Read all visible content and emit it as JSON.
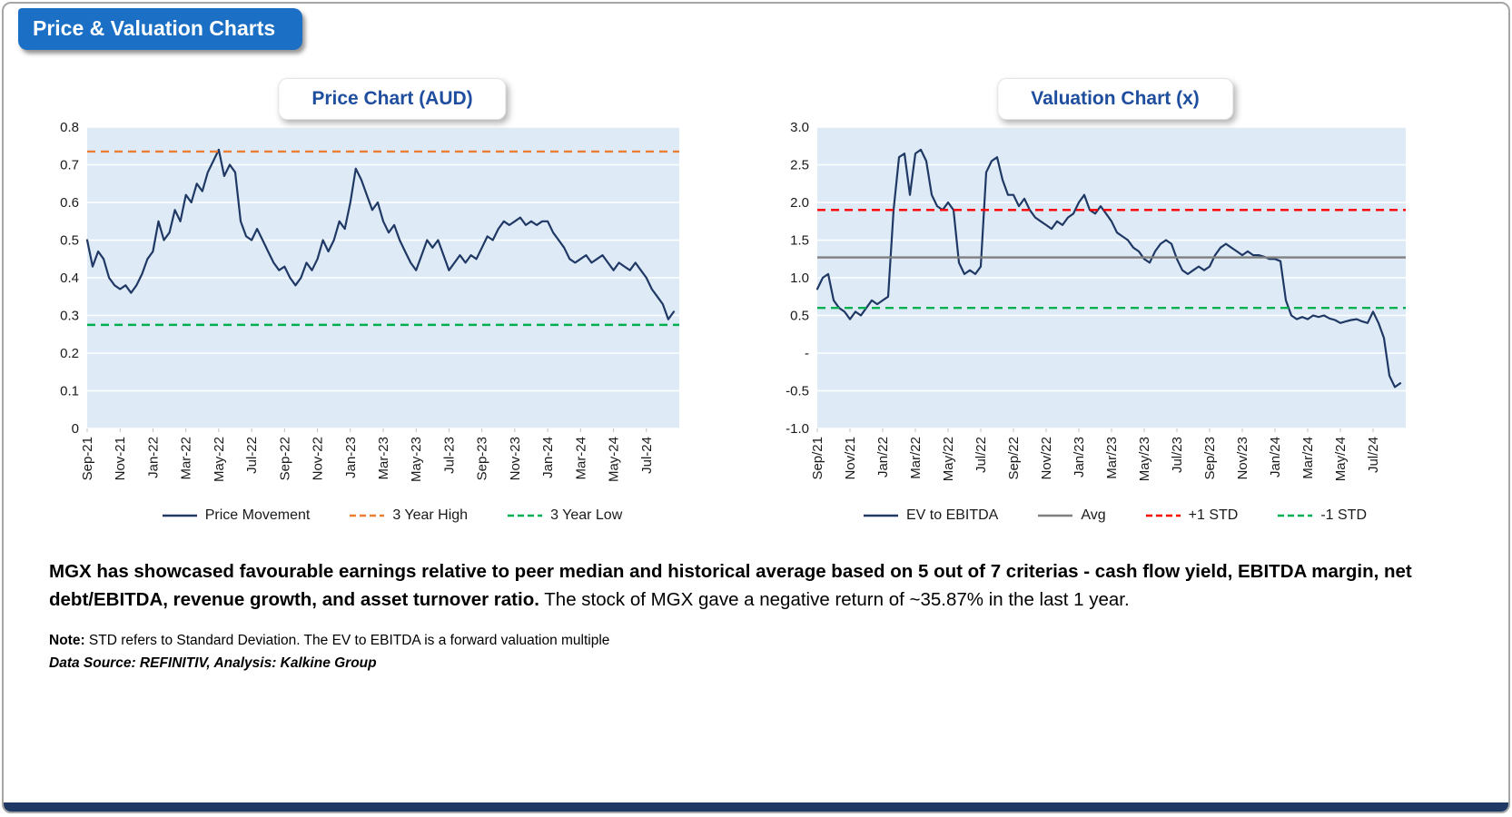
{
  "header": {
    "badge": "Price & Valuation Charts"
  },
  "commentary": {
    "bold": "MGX has showcased favourable earnings relative to peer median and historical average based on 5 out of 7 criterias - cash flow yield, EBITDA margin, net debt/EBITDA, revenue growth, and asset turnover ratio.",
    "regular": " The stock of MGX gave a negative return of ~35.87% in the last 1 year."
  },
  "footnotes": {
    "note_label": "Note:",
    "note_text": " STD refers to Standard Deviation. The EV to EBITDA is a forward valuation multiple",
    "data_source": "Data Source: REFINITIV, Analysis: Kalkine Group"
  },
  "colors": {
    "badge_bg": "#1B6FC4",
    "title_text": "#1F4E9F",
    "plot_bg": "#DEEBF7",
    "navy": "#1F3864",
    "orange": "#ED7D31",
    "green": "#00B050",
    "red": "#FF0000",
    "gray": "#7F7F7F",
    "bottom_bar": "#1F3864"
  },
  "chart_data": [
    {
      "type": "line",
      "title": "Price Chart (AUD)",
      "xlabel": "",
      "ylabel": "",
      "ylim": [
        0,
        0.8
      ],
      "yticks": [
        0,
        0.1,
        0.2,
        0.3,
        0.4,
        0.5,
        0.6,
        0.7,
        0.8
      ],
      "ytick_labels": [
        "0",
        "0.1",
        "0.2",
        "0.3",
        "0.4",
        "0.5",
        "0.6",
        "0.7",
        "0.8"
      ],
      "x_tick_labels": [
        "Sep-21",
        "Nov-21",
        "Jan-22",
        "Mar-22",
        "May-22",
        "Jul-22",
        "Sep-22",
        "Nov-22",
        "Jan-23",
        "Mar-23",
        "May-23",
        "Jul-23",
        "Sep-23",
        "Nov-23",
        "Jan-24",
        "Mar-24",
        "May-24",
        "Jul-24"
      ],
      "months_span": 36,
      "tick_step": 2,
      "grid": true,
      "legend_position": "bottom",
      "plot_bg": "#DEEBF7",
      "series": [
        {
          "name": "Price Movement",
          "color": "#1F3864",
          "style": "solid",
          "values": [
            0.5,
            0.43,
            0.47,
            0.45,
            0.4,
            0.38,
            0.37,
            0.38,
            0.36,
            0.38,
            0.41,
            0.45,
            0.47,
            0.55,
            0.5,
            0.52,
            0.58,
            0.55,
            0.62,
            0.6,
            0.65,
            0.63,
            0.68,
            0.71,
            0.74,
            0.67,
            0.7,
            0.68,
            0.55,
            0.51,
            0.5,
            0.53,
            0.5,
            0.47,
            0.44,
            0.42,
            0.43,
            0.4,
            0.38,
            0.4,
            0.44,
            0.42,
            0.45,
            0.5,
            0.47,
            0.5,
            0.55,
            0.53,
            0.6,
            0.69,
            0.66,
            0.62,
            0.58,
            0.6,
            0.55,
            0.52,
            0.54,
            0.5,
            0.47,
            0.44,
            0.42,
            0.46,
            0.5,
            0.48,
            0.5,
            0.46,
            0.42,
            0.44,
            0.46,
            0.44,
            0.46,
            0.45,
            0.48,
            0.51,
            0.5,
            0.53,
            0.55,
            0.54,
            0.55,
            0.56,
            0.54,
            0.55,
            0.54,
            0.55,
            0.55,
            0.52,
            0.5,
            0.48,
            0.45,
            0.44,
            0.45,
            0.46,
            0.44,
            0.45,
            0.46,
            0.44,
            0.42,
            0.44,
            0.43,
            0.42,
            0.44,
            0.42,
            0.4,
            0.37,
            0.35,
            0.33,
            0.29,
            0.31
          ]
        },
        {
          "name": "3 Year High",
          "color": "#ED7D31",
          "style": "dashed",
          "const": 0.735
        },
        {
          "name": "3 Year Low",
          "color": "#00B050",
          "style": "dashed",
          "const": 0.275
        }
      ]
    },
    {
      "type": "line",
      "title": "Valuation Chart (x)",
      "xlabel": "",
      "ylabel": "",
      "ylim": [
        -1.0,
        3.0
      ],
      "yticks": [
        -1.0,
        -0.5,
        0,
        0.5,
        1.0,
        1.5,
        2.0,
        2.5,
        3.0
      ],
      "ytick_labels": [
        "-1.0",
        "-0.5",
        "-",
        "0.5",
        "1.0",
        "1.5",
        "2.0",
        "2.5",
        "3.0"
      ],
      "x_tick_labels": [
        "Sep/21",
        "Nov/21",
        "Jan/22",
        "Mar/22",
        "May/22",
        "Jul/22",
        "Sep/22",
        "Nov/22",
        "Jan/23",
        "Mar/23",
        "May/23",
        "Jul/23",
        "Sep/23",
        "Nov/23",
        "Jan/24",
        "Mar/24",
        "May/24",
        "Jul/24"
      ],
      "months_span": 36,
      "tick_step": 2,
      "grid": true,
      "legend_position": "bottom",
      "plot_bg": "#DEEBF7",
      "series": [
        {
          "name": "EV to EBITDA",
          "color": "#1F3864",
          "style": "solid",
          "values": [
            0.85,
            1.0,
            1.05,
            0.7,
            0.6,
            0.55,
            0.45,
            0.55,
            0.5,
            0.6,
            0.7,
            0.65,
            0.7,
            0.75,
            1.9,
            2.6,
            2.65,
            2.1,
            2.65,
            2.7,
            2.55,
            2.1,
            1.95,
            1.9,
            2.0,
            1.9,
            1.2,
            1.05,
            1.1,
            1.05,
            1.15,
            2.4,
            2.55,
            2.6,
            2.3,
            2.1,
            2.1,
            1.95,
            2.05,
            1.9,
            1.8,
            1.75,
            1.7,
            1.65,
            1.75,
            1.7,
            1.8,
            1.85,
            2.0,
            2.1,
            1.9,
            1.85,
            1.95,
            1.85,
            1.75,
            1.6,
            1.55,
            1.5,
            1.4,
            1.35,
            1.25,
            1.2,
            1.35,
            1.45,
            1.5,
            1.45,
            1.25,
            1.1,
            1.05,
            1.1,
            1.15,
            1.1,
            1.15,
            1.3,
            1.4,
            1.45,
            1.4,
            1.35,
            1.3,
            1.35,
            1.3,
            1.3,
            1.28,
            1.25,
            1.25,
            1.22,
            0.7,
            0.5,
            0.45,
            0.48,
            0.45,
            0.5,
            0.48,
            0.5,
            0.46,
            0.44,
            0.4,
            0.42,
            0.44,
            0.45,
            0.42,
            0.4,
            0.55,
            0.4,
            0.2,
            -0.3,
            -0.45,
            -0.4
          ]
        },
        {
          "name": "Avg",
          "color": "#7F7F7F",
          "style": "solid",
          "const": 1.27
        },
        {
          "name": "+1 STD",
          "color": "#FF0000",
          "style": "dashed",
          "const": 1.9
        },
        {
          "name": "-1 STD",
          "color": "#00B050",
          "style": "dashed",
          "const": 0.6
        }
      ]
    }
  ]
}
